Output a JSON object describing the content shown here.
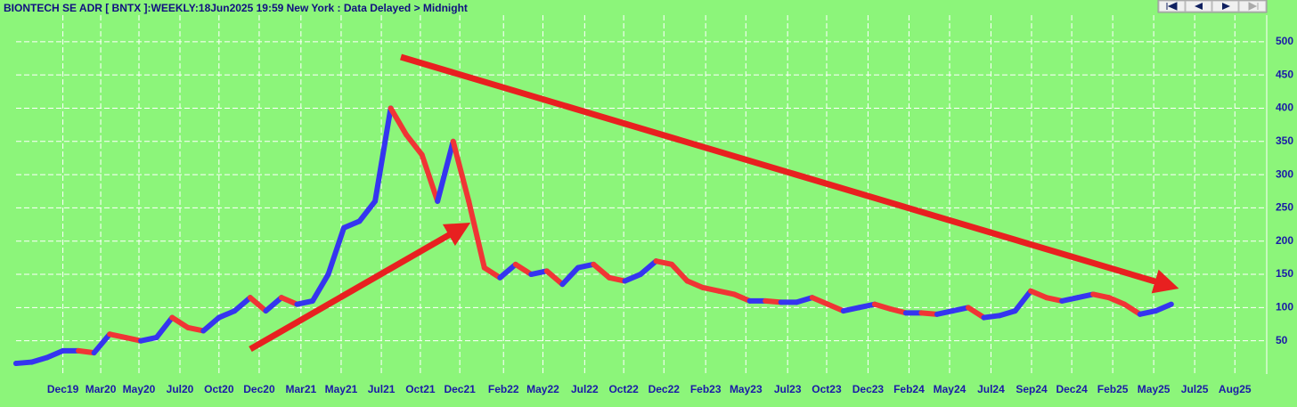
{
  "chart_data": {
    "type": "line",
    "title": "BIONTECH SE ADR [ BNTX ]:WEEKLY:18Jun2025 19:59 New York : Data Delayed > Midnight",
    "x": [
      0,
      4,
      8,
      12,
      16,
      20,
      24,
      28,
      32,
      36,
      40,
      44,
      48,
      52,
      56,
      60,
      64,
      68,
      72,
      76,
      80,
      84,
      88,
      92,
      96,
      100,
      104,
      108,
      112,
      116,
      120,
      124,
      128,
      132,
      136,
      140,
      144,
      148,
      152,
      156,
      160,
      164,
      168,
      172,
      176,
      180,
      184,
      188,
      192,
      196,
      200,
      204,
      208,
      212,
      216,
      220,
      224,
      228,
      232,
      236,
      240,
      244,
      248,
      252,
      256,
      260,
      264,
      268,
      272,
      276,
      280,
      284,
      288,
      292,
      296
    ],
    "series": [
      {
        "name": "BNTX",
        "values": [
          16,
          18,
          25,
          35,
          35,
          32,
          60,
          55,
          50,
          55,
          85,
          70,
          65,
          85,
          95,
          115,
          95,
          115,
          105,
          110,
          150,
          220,
          230,
          260,
          400,
          360,
          330,
          260,
          350,
          260,
          160,
          145,
          165,
          150,
          155,
          135,
          160,
          165,
          145,
          140,
          150,
          170,
          165,
          140,
          130,
          125,
          120,
          110,
          110,
          108,
          108,
          115,
          105,
          95,
          100,
          105,
          98,
          92,
          92,
          90,
          95,
          100,
          85,
          88,
          95,
          125,
          115,
          110,
          115,
          120,
          115,
          105,
          90,
          95,
          105
        ]
      }
    ],
    "up_color": "#3535f0",
    "down_color": "#f03535",
    "xlim": [
      0,
      320
    ],
    "ylim": [
      0,
      540
    ],
    "yticks": [
      50,
      100,
      150,
      200,
      250,
      300,
      350,
      400,
      450,
      500
    ],
    "xticks": [
      {
        "value": 12,
        "label": "Dec19"
      },
      {
        "value": 21.7,
        "label": "Mar20"
      },
      {
        "value": 31.5,
        "label": "May20"
      },
      {
        "value": 42,
        "label": "Jul20"
      },
      {
        "value": 52,
        "label": "Oct20"
      },
      {
        "value": 62.3,
        "label": "Dec20"
      },
      {
        "value": 73,
        "label": "Mar21"
      },
      {
        "value": 83.3,
        "label": "May21"
      },
      {
        "value": 93.6,
        "label": "Jul21"
      },
      {
        "value": 103.6,
        "label": "Oct21"
      },
      {
        "value": 113.7,
        "label": "Dec21"
      },
      {
        "value": 124.9,
        "label": "Feb22"
      },
      {
        "value": 135,
        "label": "May22"
      },
      {
        "value": 145.7,
        "label": "Jul22"
      },
      {
        "value": 155.7,
        "label": "Oct22"
      },
      {
        "value": 166,
        "label": "Dec22"
      },
      {
        "value": 176.7,
        "label": "Feb23"
      },
      {
        "value": 187,
        "label": "May23"
      },
      {
        "value": 197.7,
        "label": "Jul23"
      },
      {
        "value": 207.7,
        "label": "Oct23"
      },
      {
        "value": 218.3,
        "label": "Dec23"
      },
      {
        "value": 228.8,
        "label": "Feb24"
      },
      {
        "value": 239.2,
        "label": "May24"
      },
      {
        "value": 249.8,
        "label": "Jul24"
      },
      {
        "value": 260.2,
        "label": "Sep24"
      },
      {
        "value": 270.5,
        "label": "Dec24"
      },
      {
        "value": 281,
        "label": "Feb25"
      },
      {
        "value": 291.5,
        "label": "May25"
      },
      {
        "value": 302,
        "label": "Jul25"
      },
      {
        "value": 312.3,
        "label": "Aug25"
      }
    ],
    "grid": true
  }
}
